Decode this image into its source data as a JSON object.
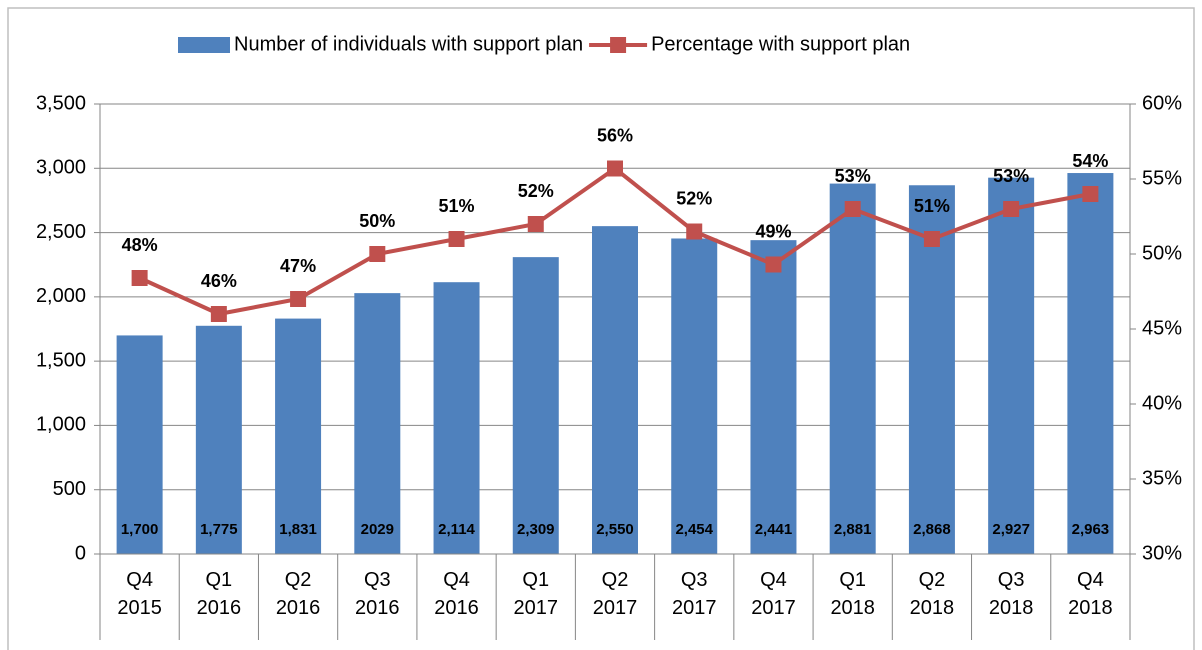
{
  "chart_data": {
    "type": "combo",
    "categories": [
      "Q4 2015",
      "Q1 2016",
      "Q2 2016",
      "Q3 2016",
      "Q4 2016",
      "Q1 2017",
      "Q2 2017",
      "Q3 2017",
      "Q4 2017",
      "Q1 2018",
      "Q2 2018",
      "Q3 2018",
      "Q4 2018"
    ],
    "series": [
      {
        "name": "Number of individuals with support plan",
        "type": "bar",
        "color": "#4f81bd",
        "values": [
          1700,
          1775,
          1831,
          2029,
          2114,
          2309,
          2550,
          2454,
          2441,
          2881,
          2868,
          2927,
          2963
        ],
        "value_labels": [
          "1,700",
          "1,775",
          "1,831",
          "2029",
          "2,114",
          "2,309",
          "2,550",
          "2,454",
          "2,441",
          "2,881",
          "2,868",
          "2,927",
          "2,963"
        ]
      },
      {
        "name": "Percentage with support plan",
        "type": "line",
        "axis": "y2",
        "color": "#c0504d",
        "values": [
          48.4,
          46,
          47,
          50,
          51,
          52,
          55.7,
          51.5,
          49.3,
          53,
          51,
          53,
          54
        ],
        "value_labels": [
          "48%",
          "46%",
          "47%",
          "50%",
          "51%",
          "52%",
          "56%",
          "52%",
          "49%",
          "53%",
          "51%",
          "53%",
          "54%"
        ]
      }
    ],
    "ylim": [
      0,
      3500
    ],
    "yticks": [
      0,
      500,
      {
        "value": 1000,
        "label": "1,000"
      },
      {
        "value": 1500,
        "label": "1,500"
      },
      {
        "value": 2000,
        "label": "2,000"
      },
      {
        "value": 2500,
        "label": "2,500"
      },
      {
        "value": 3000,
        "label": "3,000"
      },
      {
        "value": 3500,
        "label": "3,500"
      }
    ],
    "y2lim": [
      30,
      60
    ],
    "y2ticks": [
      {
        "value": 30,
        "label": "30%"
      },
      {
        "value": 35,
        "label": "35%"
      },
      {
        "value": 40,
        "label": "40%"
      },
      {
        "value": 45,
        "label": "45%"
      },
      {
        "value": 50,
        "label": "50%"
      },
      {
        "value": 55,
        "label": "55%"
      },
      {
        "value": 60,
        "label": "60%"
      }
    ],
    "grid": true,
    "legend": "top"
  }
}
